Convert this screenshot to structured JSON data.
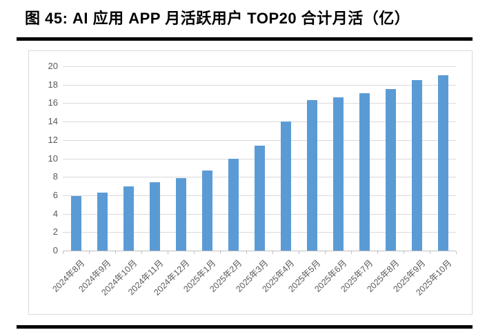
{
  "page": {
    "title": "图 45: AI 应用 APP 月活跃用户 TOP20 合计月活（亿）"
  },
  "chart_data": {
    "type": "bar",
    "title": "AI 应用 APP 月活跃用户 TOP20 合计月活（亿）",
    "categories": [
      "2024年8月",
      "2024年9月",
      "2024年10月",
      "2024年11月",
      "2024年12月",
      "2025年1月",
      "2025年2月",
      "2025年3月",
      "2025年4月",
      "2025年5月",
      "2025年6月",
      "2025年7月",
      "2025年8月",
      "2025年9月",
      "2025年10月"
    ],
    "values": [
      5.9,
      6.3,
      7.0,
      7.4,
      7.9,
      8.7,
      10.0,
      11.4,
      14.0,
      16.3,
      16.6,
      17.1,
      17.5,
      18.5,
      19.0
    ],
    "xlabel": "",
    "ylabel": "",
    "ylim": [
      0,
      20
    ],
    "ytick_step": 2,
    "grid": true,
    "legend": false,
    "bar_color": "#5b9bd5",
    "axis_label_color": "#595959",
    "gridline_color": "#d9d9d9",
    "axis_line_color": "#bfbfbf"
  }
}
